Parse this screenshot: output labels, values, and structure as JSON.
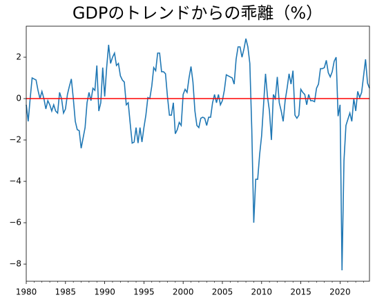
{
  "chart_data": {
    "type": "line",
    "title": "GDPのトレンドからの乖離（%）",
    "x": [
      1980,
      1980.25,
      1980.5,
      1980.75,
      1981,
      1981.25,
      1981.5,
      1981.75,
      1982,
      1982.25,
      1982.5,
      1982.75,
      1983,
      1983.25,
      1983.5,
      1983.75,
      1984,
      1984.25,
      1984.5,
      1984.75,
      1985,
      1985.25,
      1985.5,
      1985.75,
      1986,
      1986.25,
      1986.5,
      1986.75,
      1987,
      1987.25,
      1987.5,
      1987.75,
      1988,
      1988.25,
      1988.5,
      1988.75,
      1989,
      1989.25,
      1989.5,
      1989.75,
      1990,
      1990.25,
      1990.5,
      1990.75,
      1991,
      1991.25,
      1991.5,
      1991.75,
      1992,
      1992.25,
      1992.5,
      1992.75,
      1993,
      1993.25,
      1993.5,
      1993.75,
      1994,
      1994.25,
      1994.5,
      1994.75,
      1995,
      1995.25,
      1995.5,
      1995.75,
      1996,
      1996.25,
      1996.5,
      1996.75,
      1997,
      1997.25,
      1997.5,
      1997.75,
      1998,
      1998.25,
      1998.5,
      1998.75,
      1999,
      1999.25,
      1999.5,
      1999.75,
      2000,
      2000.25,
      2000.5,
      2000.75,
      2001,
      2001.25,
      2001.5,
      2001.75,
      2002,
      2002.25,
      2002.5,
      2002.75,
      2003,
      2003.25,
      2003.5,
      2003.75,
      2004,
      2004.25,
      2004.5,
      2004.75,
      2005,
      2005.25,
      2005.5,
      2005.75,
      2006,
      2006.25,
      2006.5,
      2006.75,
      2007,
      2007.25,
      2007.5,
      2007.75,
      2008,
      2008.25,
      2008.5,
      2008.75,
      2009,
      2009.25,
      2009.5,
      2009.75,
      2010,
      2010.25,
      2010.5,
      2010.75,
      2011,
      2011.25,
      2011.5,
      2011.75,
      2012,
      2012.25,
      2012.5,
      2012.75,
      2013,
      2013.25,
      2013.5,
      2013.75,
      2014,
      2014.25,
      2014.5,
      2014.75,
      2015,
      2015.25,
      2015.5,
      2015.75,
      2016,
      2016.25,
      2016.5,
      2016.75,
      2017,
      2017.25,
      2017.5,
      2017.75,
      2018,
      2018.25,
      2018.5,
      2018.75,
      2019,
      2019.25,
      2019.5,
      2019.75,
      2020,
      2020.25,
      2020.5,
      2020.75,
      2021,
      2021.25,
      2021.5,
      2021.75,
      2022,
      2022.25,
      2022.5,
      2022.75,
      2023,
      2023.25,
      2023.5,
      2023.75
    ],
    "series": [
      {
        "color": "#1f77b4",
        "values": [
          -0.3,
          -1.1,
          0.0,
          1.0,
          0.95,
          0.9,
          0.4,
          0.0,
          0.35,
          0.0,
          -0.5,
          -0.1,
          -0.3,
          -0.6,
          -0.3,
          -0.6,
          -0.7,
          0.3,
          0.0,
          -0.7,
          -0.5,
          0.2,
          0.6,
          0.95,
          0.0,
          -1.1,
          -1.5,
          -1.55,
          -2.4,
          -1.9,
          -1.4,
          -0.2,
          0.3,
          -0.1,
          0.5,
          0.4,
          1.6,
          -0.6,
          -0.2,
          1.5,
          0.1,
          1.5,
          2.6,
          1.7,
          2.0,
          2.2,
          1.6,
          1.7,
          1.1,
          0.9,
          0.8,
          -0.3,
          -0.2,
          -1.2,
          -2.15,
          -2.1,
          -1.4,
          -2.15,
          -1.4,
          -2.1,
          -1.4,
          -0.8,
          0.05,
          0.0,
          0.6,
          1.5,
          1.35,
          2.2,
          2.2,
          1.3,
          1.3,
          1.2,
          0.1,
          -0.8,
          -0.8,
          -0.2,
          -1.7,
          -1.5,
          -1.15,
          -1.3,
          0.2,
          0.45,
          0.3,
          1.0,
          1.55,
          0.8,
          -0.6,
          -1.3,
          -1.4,
          -0.95,
          -0.9,
          -0.95,
          -1.3,
          -0.9,
          -0.9,
          -0.2,
          0.2,
          -0.2,
          0.2,
          -0.3,
          -0.1,
          0.4,
          1.15,
          1.1,
          1.05,
          1.0,
          0.7,
          1.9,
          2.5,
          2.5,
          2.0,
          2.4,
          2.9,
          2.5,
          1.7,
          -1.5,
          -6.0,
          -3.9,
          -3.9,
          -2.7,
          -1.8,
          -0.3,
          1.2,
          0.1,
          -0.6,
          -2.0,
          0.2,
          0.0,
          1.05,
          -0.2,
          -0.6,
          -1.1,
          -0.1,
          0.5,
          1.2,
          0.7,
          1.35,
          -0.8,
          -0.95,
          -0.8,
          0.45,
          0.3,
          0.2,
          -0.3,
          0.2,
          -0.1,
          -0.1,
          -0.15,
          0.5,
          0.7,
          1.45,
          1.45,
          1.5,
          1.85,
          1.25,
          1.05,
          1.3,
          1.8,
          2.0,
          -0.85,
          -0.3,
          -8.3,
          -3.0,
          -1.3,
          -1.0,
          -0.7,
          -1.1,
          0.0,
          -0.6,
          0.35,
          0.05,
          0.3,
          1.1,
          1.9,
          0.75,
          0.5
        ]
      }
    ],
    "hline": {
      "value": 0,
      "color": "#ff0000"
    },
    "xlim": [
      1980,
      2023.75
    ],
    "xticks": [
      1980,
      1985,
      1990,
      1995,
      2000,
      2005,
      2010,
      2015,
      2020
    ],
    "xminorticks": [
      1981,
      1982,
      1983,
      1984,
      1986,
      1987,
      1988,
      1989,
      1991,
      1992,
      1993,
      1994,
      1996,
      1997,
      1998,
      1999,
      2001,
      2002,
      2003,
      2004,
      2006,
      2007,
      2008,
      2009,
      2011,
      2012,
      2013,
      2014,
      2016,
      2017,
      2018,
      2019,
      2021,
      2022,
      2023
    ],
    "ylim": [
      -8.83,
      3.5
    ],
    "yticks": [
      {
        "value": -8,
        "label": "−8"
      },
      {
        "value": -6,
        "label": "−6"
      },
      {
        "value": -4,
        "label": "−4"
      },
      {
        "value": -2,
        "label": "−2"
      },
      0,
      2
    ]
  }
}
